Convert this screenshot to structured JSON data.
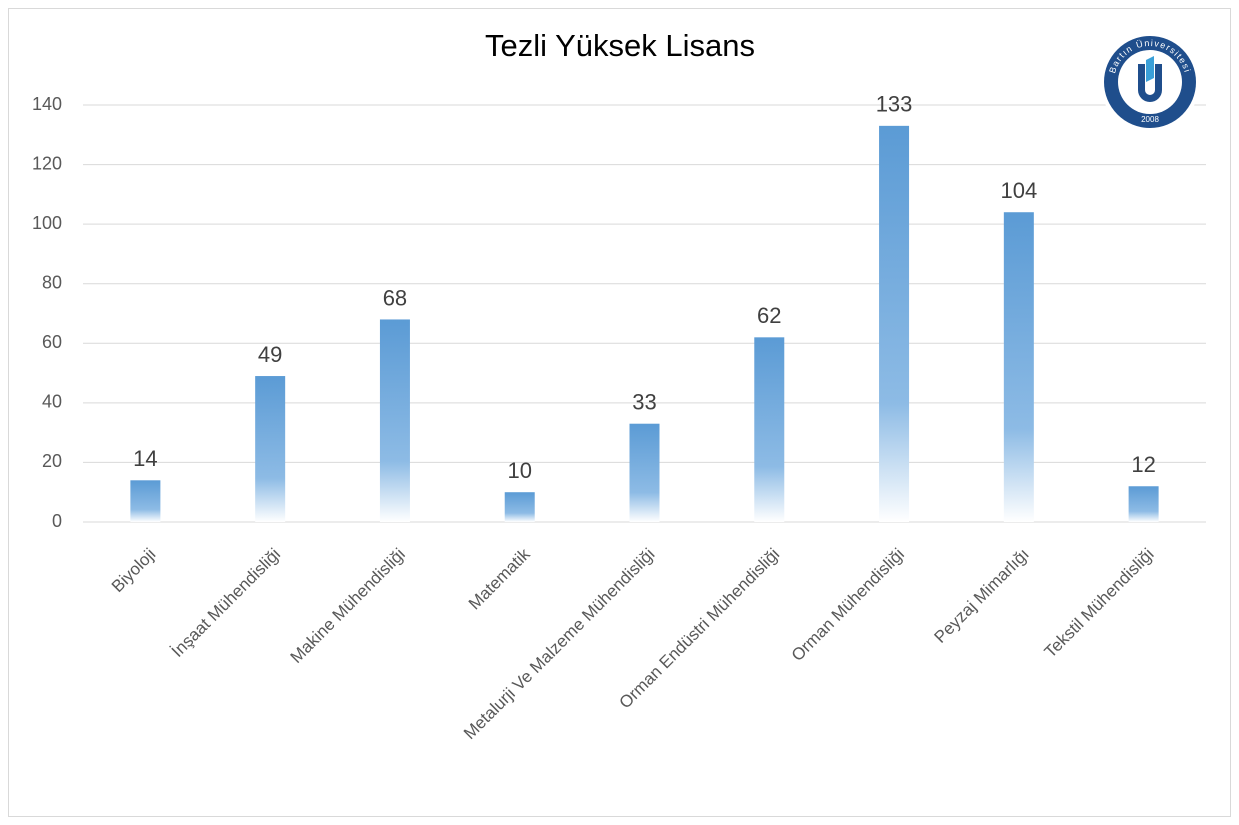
{
  "chart_data": {
    "type": "bar",
    "title": "Tezli Yüksek Lisans",
    "categories": [
      "Biyoloji",
      "İnşaat Mühendisliği",
      "Makine Mühendisliği",
      "Matematik",
      "Metalurji Ve Malzeme Mühendisliği",
      "Orman Endüstri Mühendisliği",
      "Orman Mühendisliği",
      "Peyzaj Mimarlığı",
      "Tekstil Mühendisliği"
    ],
    "values": [
      14,
      49,
      68,
      10,
      33,
      62,
      133,
      104,
      12
    ],
    "color": "#5b9bd5",
    "ylim": [
      0,
      140
    ],
    "yticks": [
      0,
      20,
      40,
      60,
      80,
      100,
      120,
      140
    ],
    "grid": true
  },
  "logo": {
    "name": "Bartın Üniversitesi",
    "year": "2008"
  }
}
